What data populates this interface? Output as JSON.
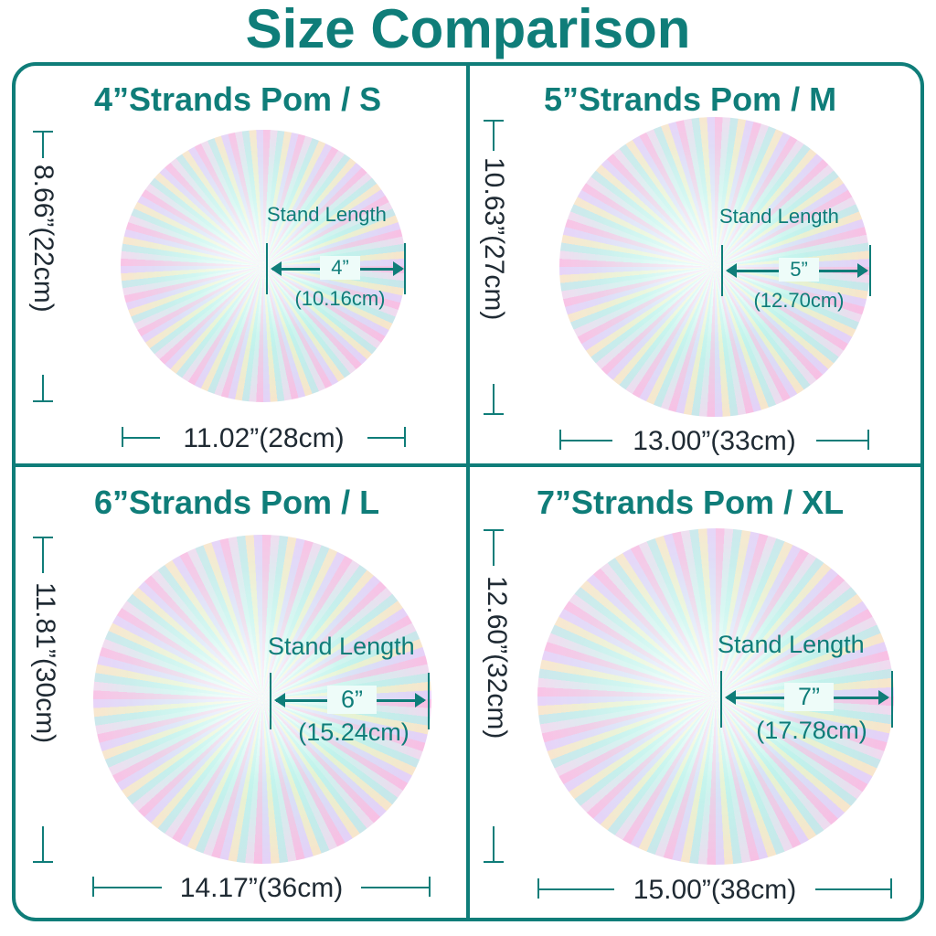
{
  "title": "Size Comparison",
  "stand_label": "Stand Length",
  "panels": [
    {
      "title": "4”Strands Pom / S",
      "stand": "4”",
      "stand_cm": "(10.16cm)",
      "width": "11.02”(28cm)",
      "height": "8.66”(22cm)"
    },
    {
      "title": "5”Strands Pom / M",
      "stand": "5”",
      "stand_cm": "(12.70cm)",
      "width": "13.00”(33cm)",
      "height": "10.63”(27cm)"
    },
    {
      "title": "6”Strands Pom / L",
      "stand": "6”",
      "stand_cm": "(15.24cm)",
      "width": "14.17”(36cm)",
      "height": "11.81”(30cm)"
    },
    {
      "title": "7”Strands Pom / XL",
      "stand": "7”",
      "stand_cm": "(17.78cm)",
      "width": "15.00”(38cm)",
      "height": "12.60”(32cm)"
    }
  ],
  "colors": {
    "accent": "#0f7d79",
    "dimension_text": "#1f2a33"
  }
}
